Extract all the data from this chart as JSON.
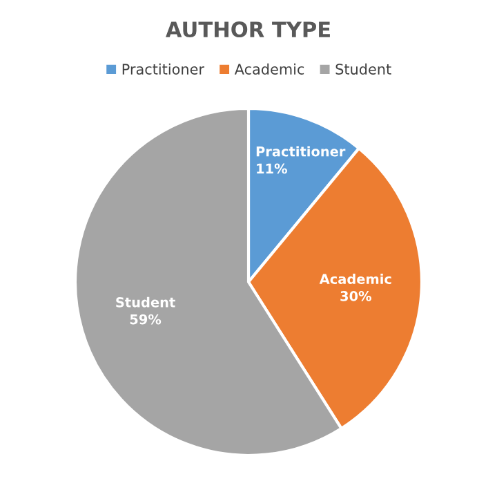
{
  "chart_data": {
    "type": "pie",
    "title": "AUTHOR TYPE",
    "categories": [
      "Practitioner",
      "Academic",
      "Student"
    ],
    "values": [
      11,
      30,
      59
    ],
    "value_labels": [
      "11%",
      "30%",
      "59%"
    ],
    "colors": [
      "#5b9bd5",
      "#ed7d31",
      "#a5a5a5"
    ],
    "legend": "top"
  }
}
